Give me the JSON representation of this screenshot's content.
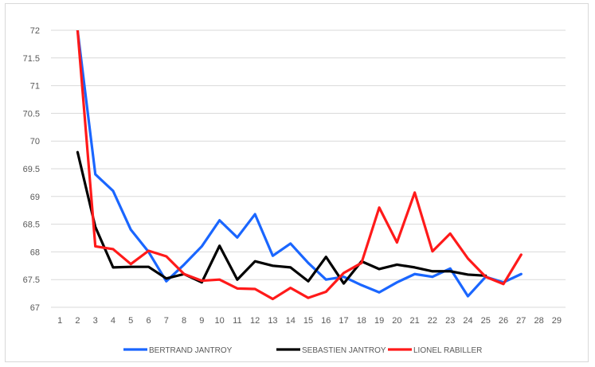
{
  "chart_data": {
    "type": "line",
    "title": "",
    "xlabel": "",
    "ylabel": "",
    "categories": [
      "1",
      "2",
      "3",
      "4",
      "5",
      "6",
      "7",
      "8",
      "9",
      "10",
      "11",
      "12",
      "13",
      "14",
      "15",
      "16",
      "17",
      "18",
      "19",
      "20",
      "21",
      "22",
      "23",
      "24",
      "25",
      "26",
      "27",
      "28",
      "29"
    ],
    "ylim": [
      67,
      72
    ],
    "yticks": [
      "67",
      "67.5",
      "68",
      "68.5",
      "69",
      "69.5",
      "70",
      "70.5",
      "71",
      "71.5",
      "72"
    ],
    "grid": true,
    "legend_position": "bottom",
    "series": [
      {
        "name": "BERTRAND JANTROY",
        "color": "#1a66ff",
        "values": [
          null,
          72.0,
          69.4,
          69.1,
          68.4,
          68.0,
          67.47,
          67.77,
          68.1,
          68.57,
          68.26,
          68.68,
          67.93,
          68.15,
          67.8,
          67.5,
          67.55,
          67.4,
          67.27,
          67.45,
          67.6,
          67.55,
          67.7,
          67.2,
          67.55,
          67.45,
          67.6,
          null,
          null
        ]
      },
      {
        "name": "SEBASTIEN JANTROY",
        "color": "#000000",
        "values": [
          null,
          69.8,
          68.45,
          67.72,
          67.73,
          67.73,
          67.52,
          67.6,
          67.45,
          68.11,
          67.5,
          67.83,
          67.75,
          67.72,
          67.47,
          67.91,
          67.43,
          67.83,
          67.69,
          67.77,
          67.72,
          67.65,
          67.65,
          67.59,
          67.57,
          null,
          null,
          null,
          null
        ]
      },
      {
        "name": "LIONEL RABILLER",
        "color": "#ff1a1a",
        "values": [
          null,
          72.0,
          68.1,
          68.05,
          67.78,
          68.02,
          67.92,
          67.6,
          67.48,
          67.5,
          67.34,
          67.33,
          67.15,
          67.35,
          67.17,
          67.28,
          67.62,
          67.8,
          68.8,
          68.17,
          69.07,
          68.01,
          68.33,
          67.88,
          67.55,
          67.42,
          67.95,
          null,
          null
        ]
      }
    ]
  }
}
